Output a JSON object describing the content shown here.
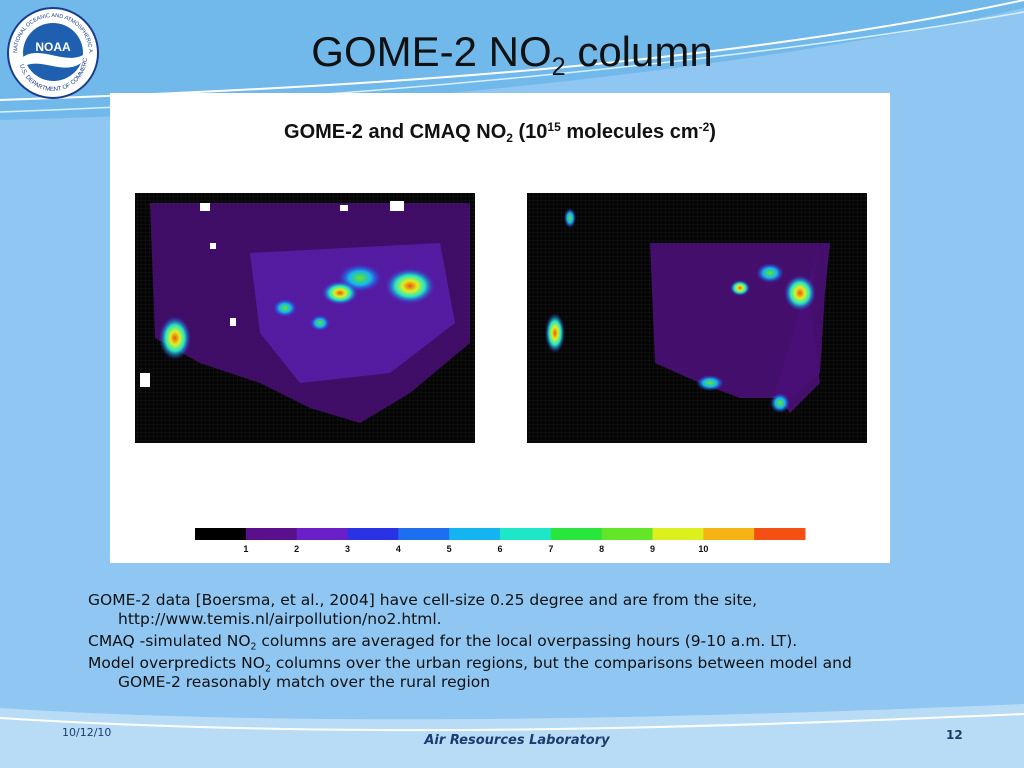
{
  "logo": {
    "name": "NOAA",
    "ring_top": "NATIONAL OCEANIC AND ATMOSPHERIC ADMINISTRATION",
    "ring_bottom": "U.S. DEPARTMENT OF COMMERCE"
  },
  "title": {
    "text": "GOME-2 NO",
    "subscript": "2",
    "suffix": " column"
  },
  "figure": {
    "title": [
      "GOME-2 and CMAQ NO",
      "2",
      " (10",
      "15",
      " molecules cm",
      "-2",
      ")"
    ],
    "colorbar": {
      "colors": [
        "#000000",
        "#5a0f8c",
        "#6a1fc8",
        "#2a32e6",
        "#1e6ef0",
        "#14b4f0",
        "#1ee6c8",
        "#28e63c",
        "#64e628",
        "#dcf01e",
        "#f5b414",
        "#f55014"
      ],
      "labels": [
        1,
        2,
        3,
        4,
        5,
        6,
        7,
        8,
        9,
        10
      ]
    }
  },
  "bullets": [
    [
      "GOME-2 data [Boersma, et al., 2004] have cell-size 0.25 degree and are from the site, http://www.temis.nl/airpollution/no2.html."
    ],
    [
      "CMAQ -simulated NO",
      "2",
      " columns are averaged for the local overpassing hours (9-10 a.m. LT)."
    ],
    [
      "Model overpredicts NO",
      "2",
      " columns over the urban regions, but the comparisons between model and GOME-2 reasonably match over the rural region"
    ]
  ],
  "footer": {
    "date": "10/12/10",
    "lab": "Air Resources Laboratory",
    "page": "12"
  }
}
